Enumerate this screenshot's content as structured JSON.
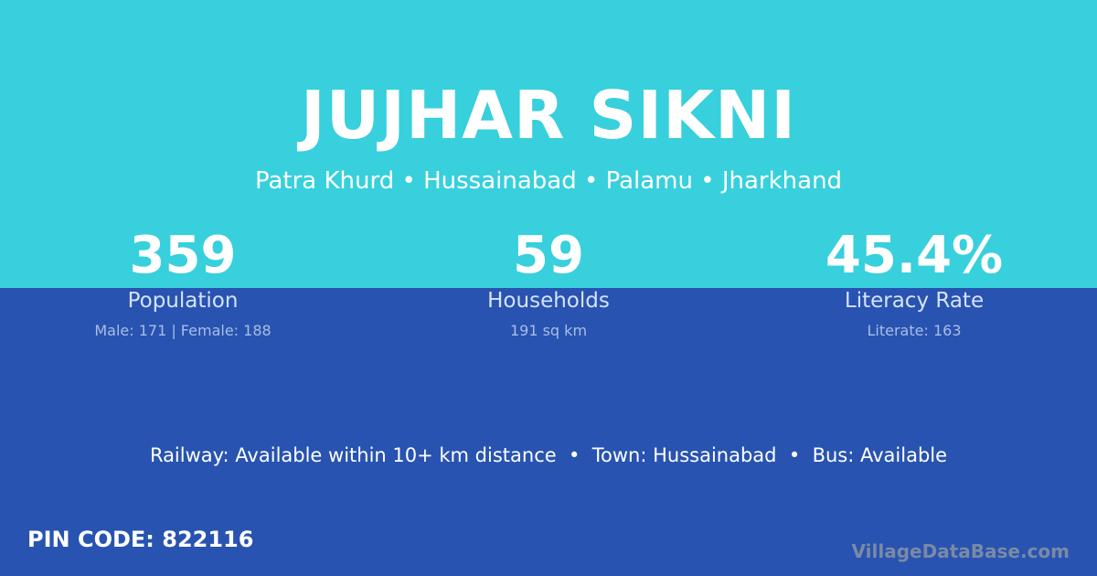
{
  "title": "JUJHAR SIKNI",
  "subtitle": "Patra Khurd • Hussainabad • Palamu • Jharkhand",
  "stats": [
    {
      "value": "359",
      "label": "Population",
      "detail": "Male: 171 | Female: 188"
    },
    {
      "value": "59",
      "label": "Households",
      "detail": "191 sq km"
    },
    {
      "value": "45.4%",
      "label": "Literacy Rate",
      "detail": "Literate: 163"
    }
  ],
  "amenities": "Railway: Available within 10+ km distance  •  Town: Hussainabad  •  Bus: Available",
  "pin_code": "PIN CODE: 822116",
  "watermark": "VillageDataBase.com",
  "colors": {
    "top": "#37d0dc",
    "bottom": "#2853b0"
  }
}
